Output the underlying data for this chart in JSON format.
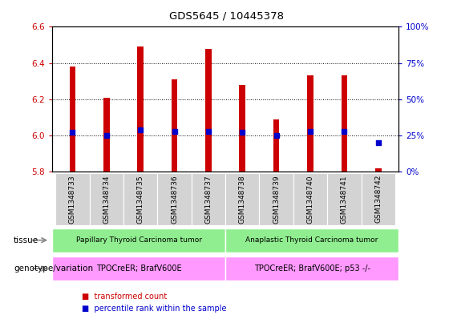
{
  "title": "GDS5645 / 10445378",
  "samples": [
    "GSM1348733",
    "GSM1348734",
    "GSM1348735",
    "GSM1348736",
    "GSM1348737",
    "GSM1348738",
    "GSM1348739",
    "GSM1348740",
    "GSM1348741",
    "GSM1348742"
  ],
  "transformed_count": [
    6.38,
    6.21,
    6.49,
    6.31,
    6.48,
    6.28,
    6.09,
    6.33,
    6.33,
    5.82
  ],
  "percentile_rank": [
    27,
    25,
    29,
    28,
    28,
    27,
    25,
    28,
    28,
    20
  ],
  "ylim_left": [
    5.8,
    6.6
  ],
  "ylim_right": [
    0,
    100
  ],
  "yticks_left": [
    5.8,
    6.0,
    6.2,
    6.4,
    6.6
  ],
  "yticks_right": [
    0,
    25,
    50,
    75,
    100
  ],
  "bar_color": "#cc0000",
  "dot_color": "#0000cc",
  "bar_bottom": 5.8,
  "tissue_groups": [
    {
      "label": "Papillary Thyroid Carcinoma tumor",
      "start": 0,
      "end": 5,
      "color": "#90ee90"
    },
    {
      "label": "Anaplastic Thyroid Carcinoma tumor",
      "start": 5,
      "end": 10,
      "color": "#90ee90"
    }
  ],
  "genotype_groups": [
    {
      "label": "TPOCreER; BrafV600E",
      "start": 0,
      "end": 5,
      "color": "#ff99ff"
    },
    {
      "label": "TPOCreER; BrafV600E; p53 -/-",
      "start": 5,
      "end": 10,
      "color": "#ff99ff"
    }
  ],
  "tissue_label": "tissue",
  "genotype_label": "genotype/variation",
  "legend_items": [
    {
      "label": "transformed count",
      "color": "#cc0000"
    },
    {
      "label": "percentile rank within the sample",
      "color": "#0000cc"
    }
  ],
  "left_axis_color": "#cc0000",
  "right_axis_color": "#0000cc",
  "xlabel_bg_color": "#d3d3d3",
  "fig_width": 5.65,
  "fig_height": 3.93,
  "fig_dpi": 100
}
